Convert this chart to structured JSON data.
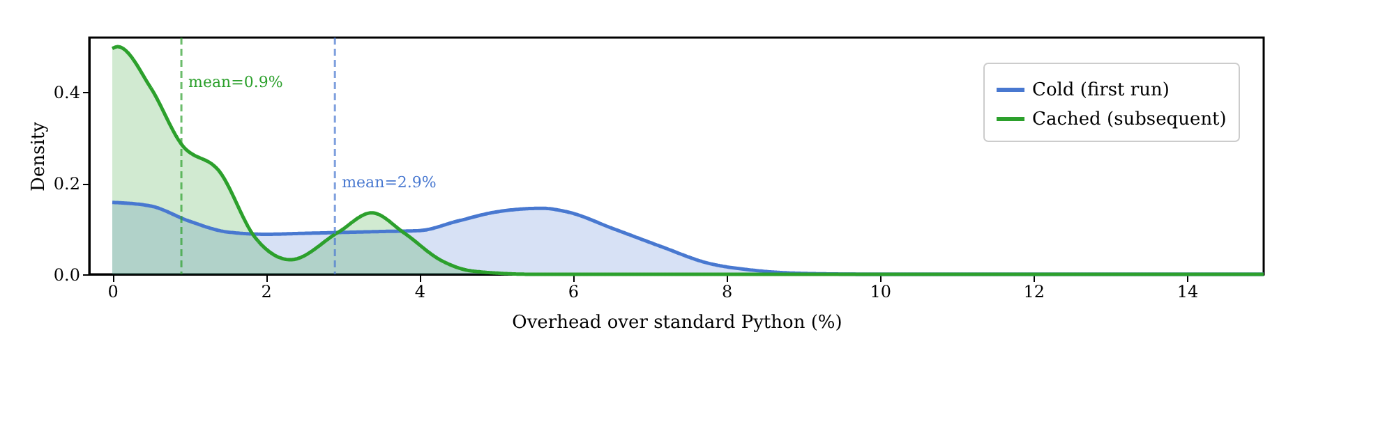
{
  "chart_data": {
    "type": "area",
    "xlabel": "Overhead over standard Python (%)",
    "ylabel": "Density",
    "xlim": [
      -0.3,
      15
    ],
    "xticks": [
      0,
      2,
      4,
      6,
      8,
      10,
      12,
      14
    ],
    "ylim": [
      0,
      0.52
    ],
    "yticks": [
      {
        "value": 0,
        "label": "0.0"
      },
      {
        "value": 0.2,
        "label": "0.2"
      },
      {
        "value": 0.4,
        "label": "0.4"
      }
    ],
    "legend": "top right",
    "grid": false,
    "line_style": "solid",
    "marker": "none",
    "series": [
      {
        "name": "Cold (first run)",
        "color": "#4878d0",
        "x": [
          0,
          0.5,
          1.0,
          1.5,
          2.0,
          2.5,
          3.0,
          3.5,
          4.0,
          4.5,
          5.0,
          5.6,
          5.93,
          6.53,
          7.15,
          7.75,
          8.35,
          9.0,
          10,
          12,
          15
        ],
        "values": [
          0.158,
          0.15,
          0.117,
          0.093,
          0.088,
          0.09,
          0.092,
          0.094,
          0.096,
          0.117,
          0.137,
          0.145,
          0.137,
          0.1,
          0.061,
          0.025,
          0.009,
          0.002,
          0,
          0,
          0
        ]
      },
      {
        "name": "Cached (subsequent)",
        "color": "#2ca02c",
        "x": [
          0,
          0.07,
          0.5,
          0.9,
          1.4,
          1.86,
          2.32,
          2.94,
          3.38,
          3.8,
          4.29,
          4.7,
          5.5,
          15
        ],
        "values": [
          0.496,
          0.5,
          0.41,
          0.286,
          0.225,
          0.081,
          0.032,
          0.092,
          0.135,
          0.091,
          0.03,
          0.007,
          0,
          0
        ]
      }
    ],
    "ref_lines": [
      {
        "axis": "x",
        "value": 0.9,
        "color": "#2ca02c",
        "line_style": "dashed"
      },
      {
        "axis": "x",
        "value": 2.9,
        "color": "#4878d0",
        "line_style": "dashed"
      }
    ],
    "annotations": [
      {
        "text": "mean=0.9%",
        "x": 0.9,
        "y": 0.42
      },
      {
        "text": "mean=2.9%",
        "x": 2.9,
        "y": 0.2
      }
    ]
  }
}
